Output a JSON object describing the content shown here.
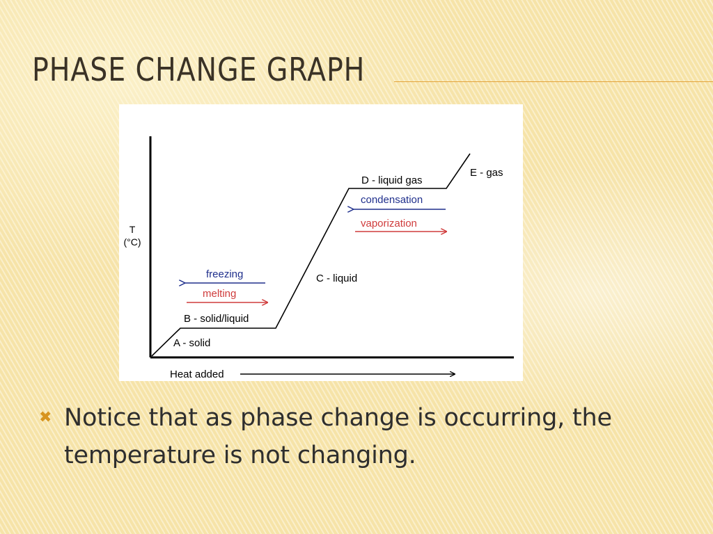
{
  "slide": {
    "title": "PHASE CHANGE GRAPH",
    "bullet_icon": "x-mark-bullet-icon",
    "bullet_text": "Notice that as phase change is occurring, the temperature is not changing."
  },
  "diagram": {
    "y_axis_label_top": "T",
    "y_axis_label_bottom": "(°C)",
    "x_axis_label": "Heat added",
    "segments": [
      {
        "label": "A - solid"
      },
      {
        "label": "B - solid/liquid"
      },
      {
        "label": "C - liquid"
      },
      {
        "label": "D - liquid gas"
      },
      {
        "label": "E - gas"
      }
    ],
    "arrows": {
      "freezing": "freezing",
      "melting": "melting",
      "condensation": "condensation",
      "vaporization": "vaporization"
    },
    "colors": {
      "line": "#000000",
      "cooling_arrow": "#1f2f8c",
      "heating_arrow": "#cf3b3b"
    }
  }
}
